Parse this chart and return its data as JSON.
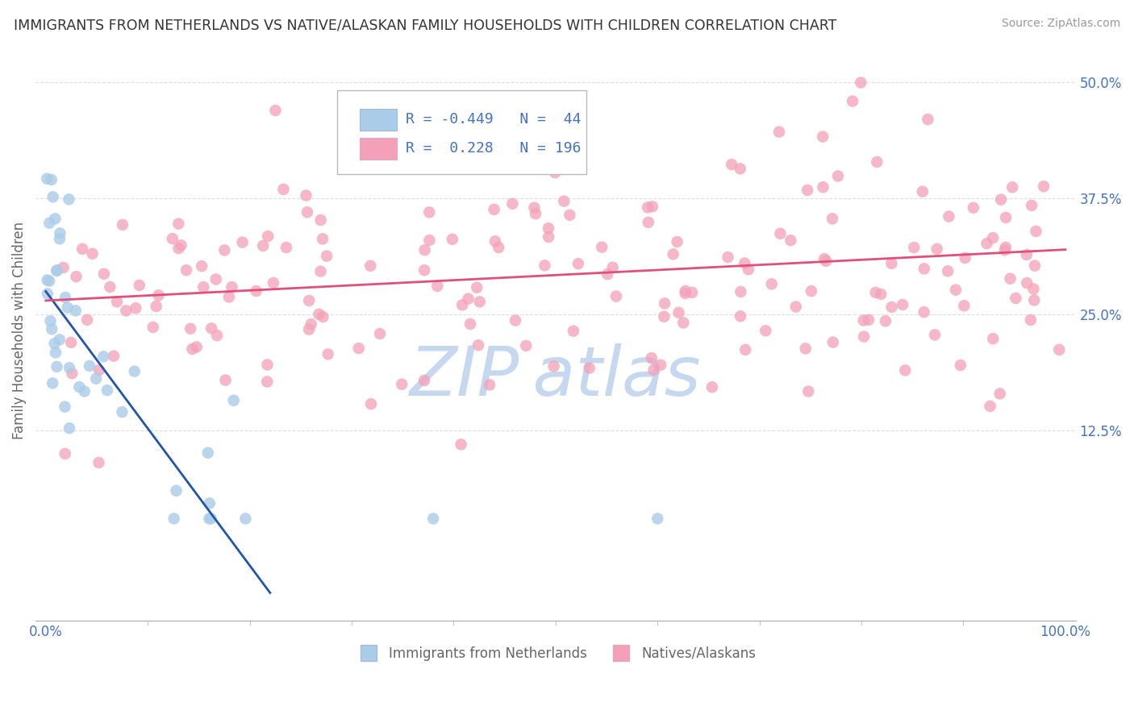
{
  "title": "IMMIGRANTS FROM NETHERLANDS VS NATIVE/ALASKAN FAMILY HOUSEHOLDS WITH CHILDREN CORRELATION CHART",
  "source": "Source: ZipAtlas.com",
  "ylabel": "Family Households with Children",
  "legend1_r": "-0.449",
  "legend1_n": "44",
  "legend2_r": "0.228",
  "legend2_n": "196",
  "blue_color": "#aacce8",
  "blue_edge_color": "#7aaed4",
  "pink_color": "#f4a0b8",
  "pink_edge_color": "#e07090",
  "blue_line_color": "#2255aa",
  "pink_line_color": "#e0507a",
  "label_color": "#4472c4",
  "grid_color": "#dddddd",
  "watermark_color": "#c5d8f0",
  "yticks": [
    0.0,
    0.125,
    0.25,
    0.375,
    0.5
  ],
  "ytick_labels": [
    "",
    "12.5%",
    "25.0%",
    "37.5%",
    "50.0%"
  ],
  "xtick_labels": [
    "0.0%",
    "100.0%"
  ],
  "xmin": -0.01,
  "xmax": 1.01,
  "ymin": -0.08,
  "ymax": 0.545,
  "blue_line_x0": 0.0,
  "blue_line_y0": 0.275,
  "blue_line_x1": 0.22,
  "blue_line_y1": -0.05,
  "pink_line_x0": 0.0,
  "pink_line_y0": 0.265,
  "pink_line_x1": 1.0,
  "pink_line_y1": 0.32
}
